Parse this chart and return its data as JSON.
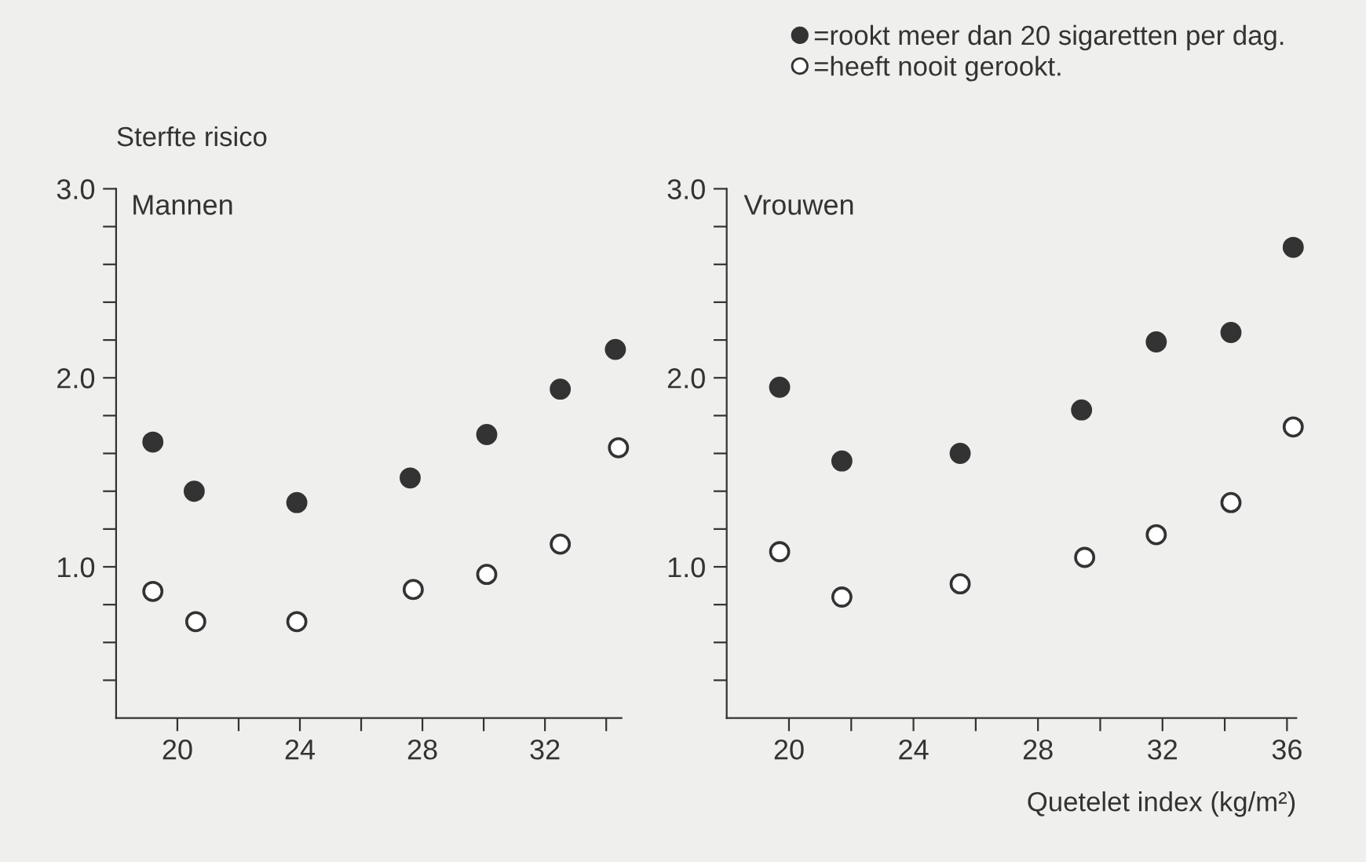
{
  "chart_data": [
    {
      "type": "scatter",
      "title": "Mannen",
      "ylabel": "Sterfte risico",
      "marker": "circle",
      "grid": false,
      "legend": false,
      "xlim": [
        18,
        34.5
      ],
      "xticks": [
        20,
        {
          "value": 22,
          "label": null
        },
        24,
        {
          "value": 26,
          "label": null
        },
        28,
        {
          "value": 30,
          "label": null
        },
        32,
        {
          "value": 34,
          "label": null
        }
      ],
      "ylim": [
        0.2,
        3.0
      ],
      "yticks": [
        {
          "value": 0.4,
          "label": null
        },
        {
          "value": 0.6,
          "label": null
        },
        {
          "value": 0.8,
          "label": null
        },
        {
          "value": 1.0,
          "label": "1.0"
        },
        {
          "value": 1.2,
          "label": null
        },
        {
          "value": 1.4,
          "label": null
        },
        {
          "value": 1.6,
          "label": null
        },
        {
          "value": 1.8,
          "label": null
        },
        {
          "value": 2.0,
          "label": "2.0"
        },
        {
          "value": 2.2,
          "label": null
        },
        {
          "value": 2.4,
          "label": null
        },
        {
          "value": 2.6,
          "label": null
        },
        {
          "value": 2.8,
          "label": null
        },
        {
          "value": 3.0,
          "label": "3.0"
        }
      ],
      "series": [
        {
          "color": "#333333",
          "x": [
            19.2,
            20.55,
            23.9,
            27.6,
            30.1,
            32.5,
            34.3
          ],
          "values": [
            1.66,
            1.4,
            1.34,
            1.47,
            1.7,
            1.94,
            2.15
          ]
        },
        {
          "color": "#ffffff",
          "x": [
            19.2,
            20.6,
            23.9,
            27.7,
            30.1,
            32.5,
            34.4
          ],
          "values": [
            0.87,
            0.71,
            0.71,
            0.88,
            0.96,
            1.12,
            1.63
          ]
        }
      ]
    },
    {
      "type": "scatter",
      "title": "Vrouwen",
      "xlabel": "Quetelet index (kg/m²)",
      "marker": "circle",
      "grid": false,
      "legend": "top right",
      "xlim": [
        18,
        36.3
      ],
      "xticks": [
        20,
        {
          "value": 22,
          "label": null
        },
        24,
        {
          "value": 26,
          "label": null
        },
        28,
        {
          "value": 30,
          "label": null
        },
        32,
        {
          "value": 34,
          "label": null
        },
        36
      ],
      "ylim": [
        0.2,
        3.0
      ],
      "yticks": [
        {
          "value": 0.4,
          "label": null
        },
        {
          "value": 0.6,
          "label": null
        },
        {
          "value": 0.8,
          "label": null
        },
        {
          "value": 1.0,
          "label": "1.0"
        },
        {
          "value": 1.2,
          "label": null
        },
        {
          "value": 1.4,
          "label": null
        },
        {
          "value": 1.6,
          "label": null
        },
        {
          "value": 1.8,
          "label": null
        },
        {
          "value": 2.0,
          "label": "2.0"
        },
        {
          "value": 2.2,
          "label": null
        },
        {
          "value": 2.4,
          "label": null
        },
        {
          "value": 2.6,
          "label": null
        },
        {
          "value": 2.8,
          "label": null
        },
        {
          "value": 3.0,
          "label": "3.0"
        }
      ],
      "series": [
        {
          "name": "=rookt meer dan 20 sigaretten per dag.",
          "color": "#333333",
          "x": [
            19.7,
            21.7,
            25.5,
            29.4,
            31.8,
            34.2,
            36.2
          ],
          "values": [
            1.95,
            1.56,
            1.6,
            1.83,
            2.19,
            2.24,
            2.69
          ]
        },
        {
          "name": "=heeft nooit gerookt.",
          "color": "#ffffff",
          "x": [
            19.7,
            21.7,
            25.5,
            29.5,
            31.8,
            34.2,
            36.2
          ],
          "values": [
            1.08,
            0.84,
            0.91,
            1.05,
            1.17,
            1.34,
            1.74
          ]
        }
      ]
    }
  ]
}
